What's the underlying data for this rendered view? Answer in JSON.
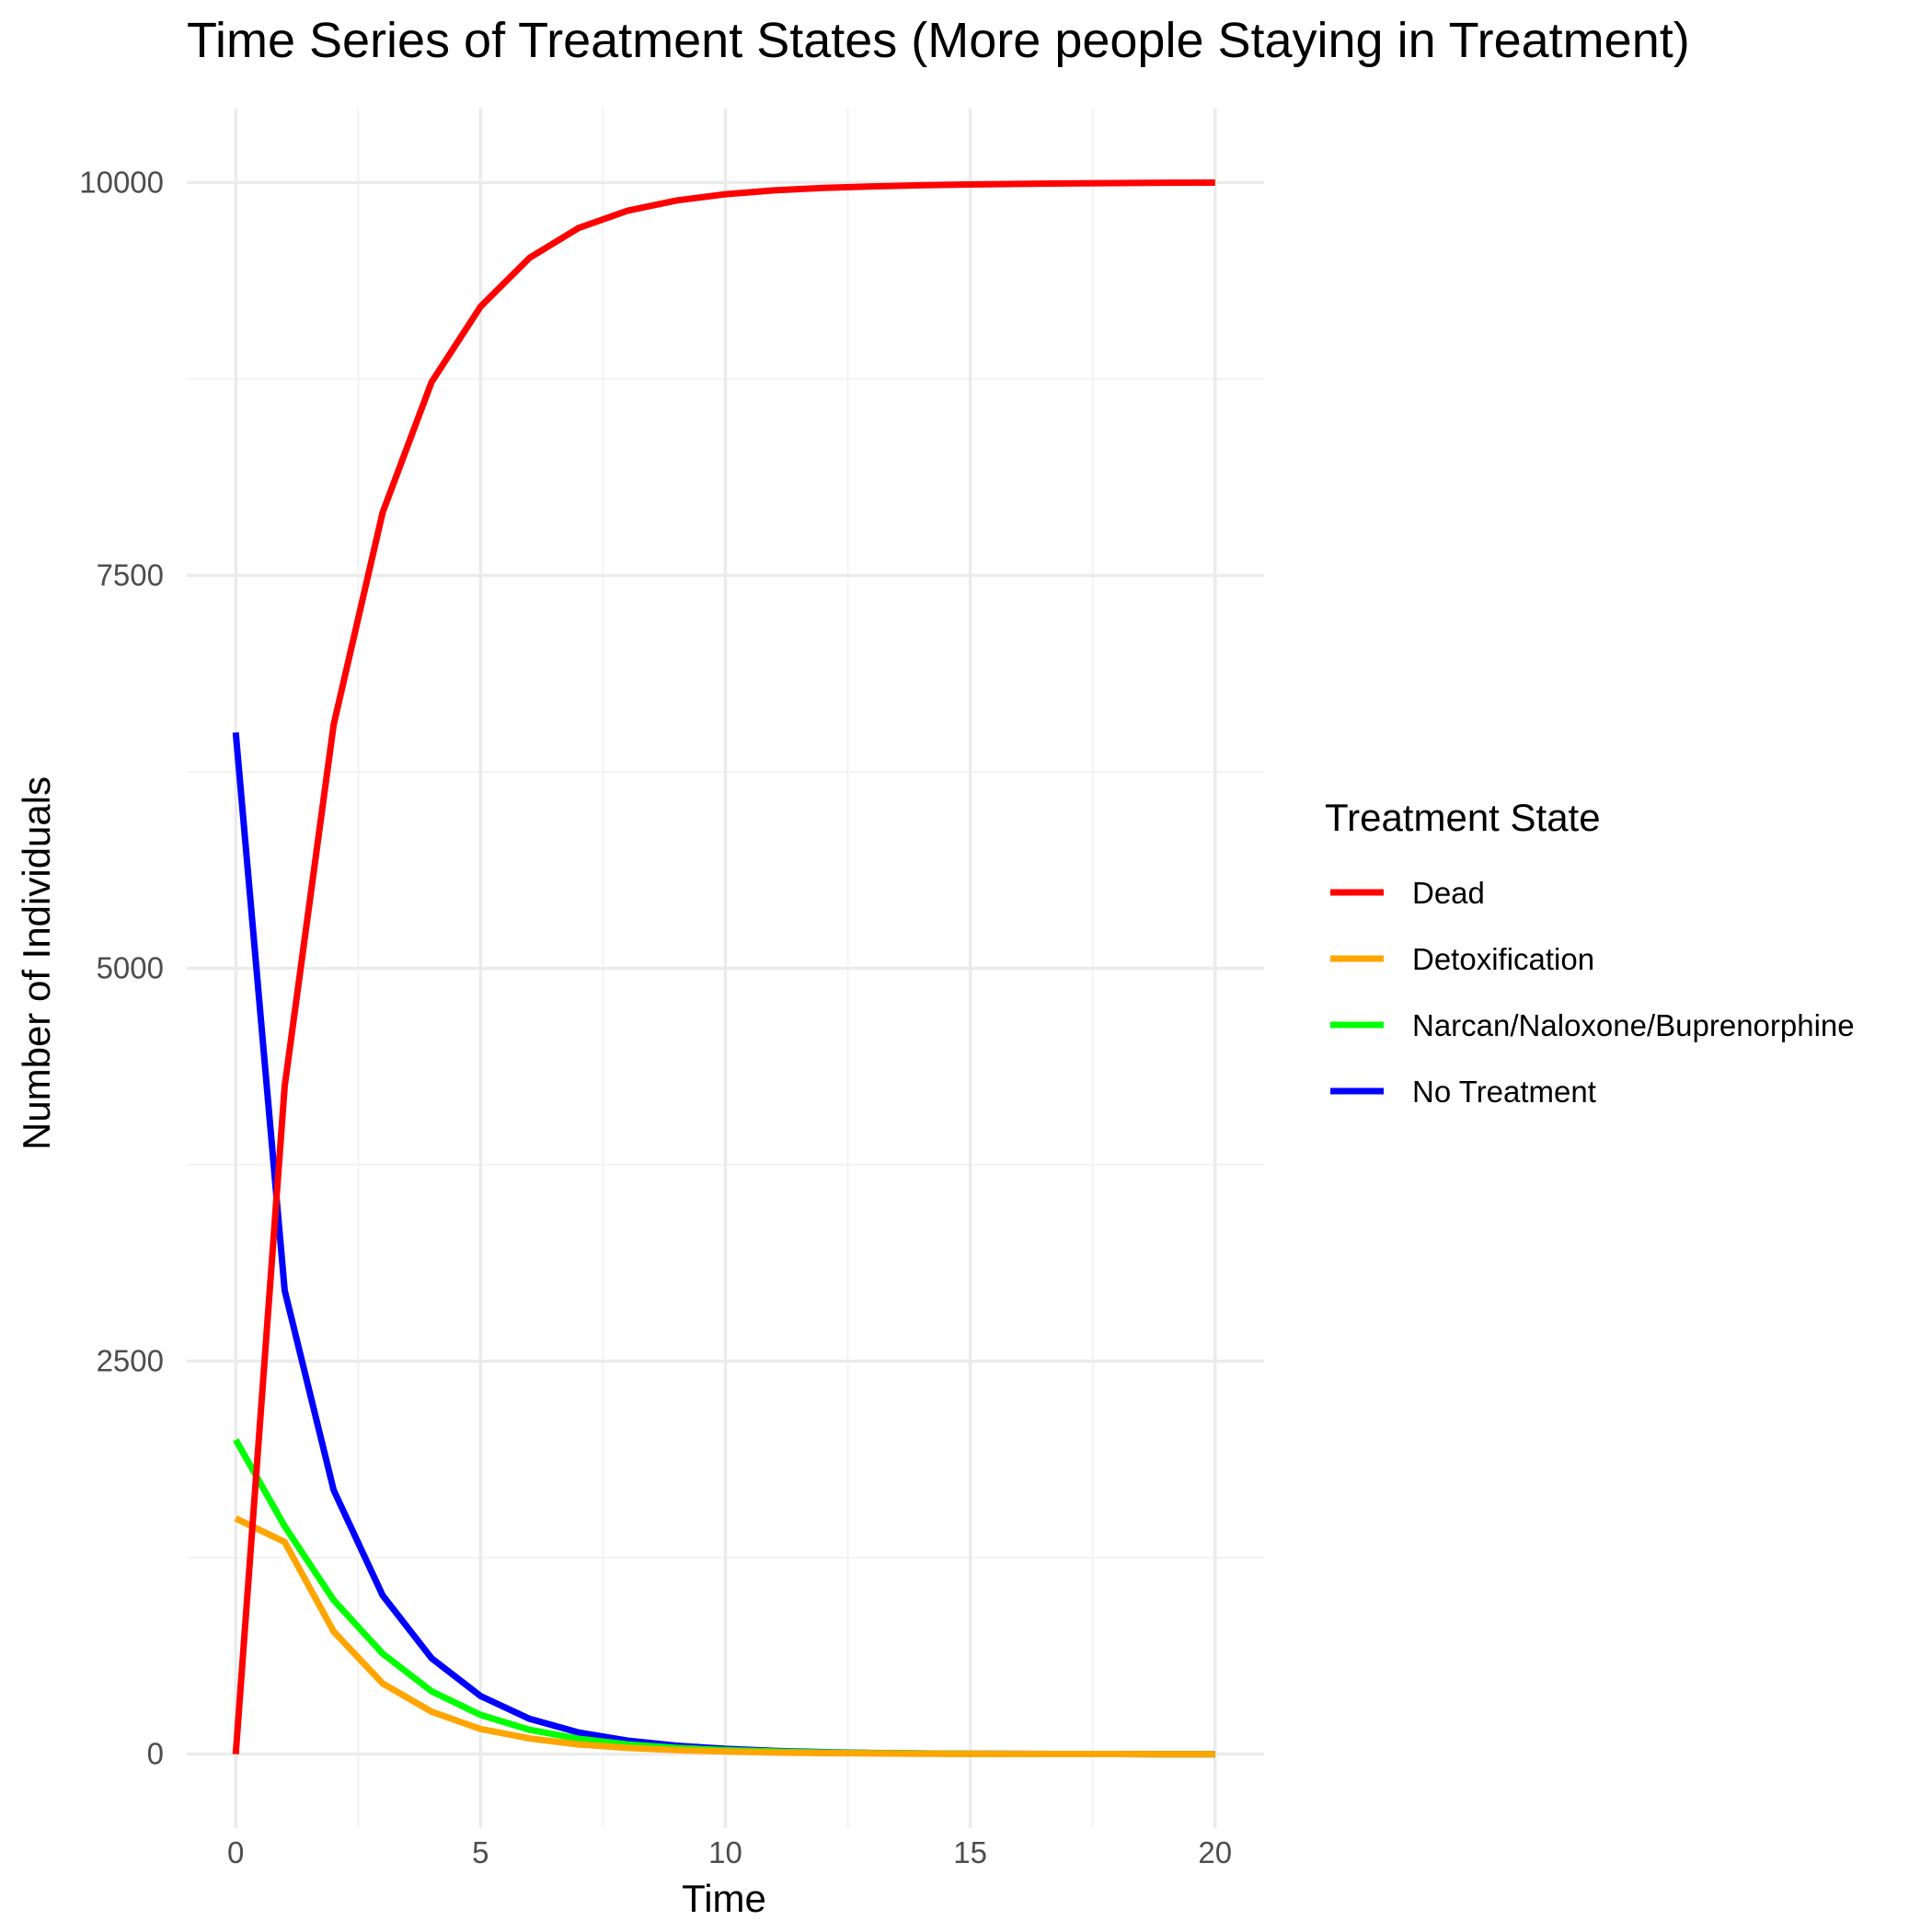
{
  "chart_data": {
    "type": "line",
    "title": "Time Series of Treatment States (More people Staying in Treatment)",
    "xlabel": "Time",
    "ylabel": "Number of Individuals",
    "xlim": [
      -1,
      21
    ],
    "ylim": [
      -470,
      10470
    ],
    "x_ticks": [
      0,
      5,
      10,
      15,
      20
    ],
    "y_ticks": [
      0,
      2500,
      5000,
      7500,
      10000
    ],
    "grid": true,
    "legend": {
      "title": "Treatment State",
      "position": "right"
    },
    "x": [
      0,
      1,
      2,
      3,
      4,
      5,
      6,
      7,
      8,
      9,
      10,
      11,
      12,
      13,
      14,
      15,
      16,
      17,
      18,
      19,
      20
    ],
    "series": [
      {
        "name": "Dead",
        "color": "#ff0000",
        "values": [
          0,
          4250,
          6550,
          7900,
          8730,
          9210,
          9520,
          9710,
          9820,
          9885,
          9925,
          9950,
          9965,
          9975,
          9982,
          9987,
          9991,
          9994,
          9996,
          9998,
          9999
        ]
      },
      {
        "name": "Detoxification",
        "color": "#ffa500",
        "values": [
          1500,
          1350,
          780,
          450,
          270,
          160,
          100,
          62,
          40,
          26,
          17,
          11,
          7,
          5,
          3,
          2,
          1,
          1,
          1,
          0,
          0
        ]
      },
      {
        "name": "Narcan/Naloxone/Buprenorphine",
        "color": "#00ff00",
        "values": [
          2000,
          1450,
          980,
          640,
          400,
          250,
          155,
          98,
          62,
          40,
          26,
          17,
          11,
          7,
          5,
          3,
          2,
          1,
          1,
          0,
          0
        ]
      },
      {
        "name": "No Treatment",
        "color": "#0000ff",
        "values": [
          6500,
          2950,
          1680,
          1010,
          610,
          370,
          225,
          138,
          86,
          54,
          34,
          21,
          13,
          8,
          5,
          3,
          2,
          1,
          1,
          0,
          0
        ]
      }
    ]
  }
}
